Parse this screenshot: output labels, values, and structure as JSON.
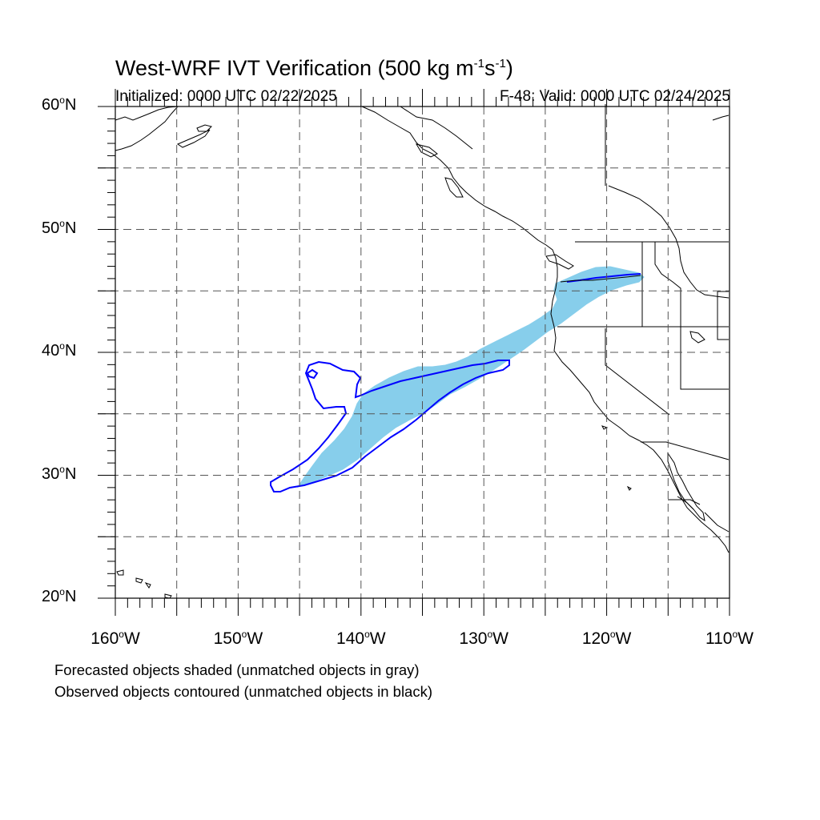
{
  "title": {
    "main": "West-WRF IVT Verification (500 kg m",
    "sup1": "-1",
    "mid": "s",
    "sup2": "-1",
    "end": ")"
  },
  "subtitle_left": "Initialized: 0000 UTC 02/22/2025",
  "subtitle_right": "F-48: Valid: 0000 UTC 02/24/2025",
  "map": {
    "lon_range": [
      -160,
      -110
    ],
    "lat_range": [
      20,
      60
    ],
    "grid_lons": [
      -155,
      -150,
      -145,
      -140,
      -135,
      -130,
      -125,
      -120,
      -115
    ],
    "grid_lats": [
      25,
      30,
      35,
      40,
      45,
      50,
      55
    ],
    "gridlines": "dashed",
    "forecast_color": "#87ceeb",
    "observed_color": "#0000ff",
    "coast_color": "#000000"
  },
  "lat_labels": [
    {
      "num": "60",
      "deg": "o",
      "hem": "N",
      "lat": 60
    },
    {
      "num": "50",
      "deg": "o",
      "hem": "N",
      "lat": 50
    },
    {
      "num": "40",
      "deg": "o",
      "hem": "N",
      "lat": 40
    },
    {
      "num": "30",
      "deg": "o",
      "hem": "N",
      "lat": 30
    },
    {
      "num": "20",
      "deg": "o",
      "hem": "N",
      "lat": 20
    }
  ],
  "lon_labels": [
    {
      "num": "160",
      "deg": "o",
      "hem": "W",
      "lon": -160
    },
    {
      "num": "150",
      "deg": "o",
      "hem": "W",
      "lon": -150
    },
    {
      "num": "140",
      "deg": "o",
      "hem": "W",
      "lon": -140
    },
    {
      "num": "130",
      "deg": "o",
      "hem": "W",
      "lon": -130
    },
    {
      "num": "120",
      "deg": "o",
      "hem": "W",
      "lon": -120
    },
    {
      "num": "110",
      "deg": "o",
      "hem": "W",
      "lon": -110
    }
  ],
  "notes": [
    "Forecasted objects shaded (unmatched objects in gray)",
    "Observed objects contoured (unmatched objects in black)"
  ]
}
